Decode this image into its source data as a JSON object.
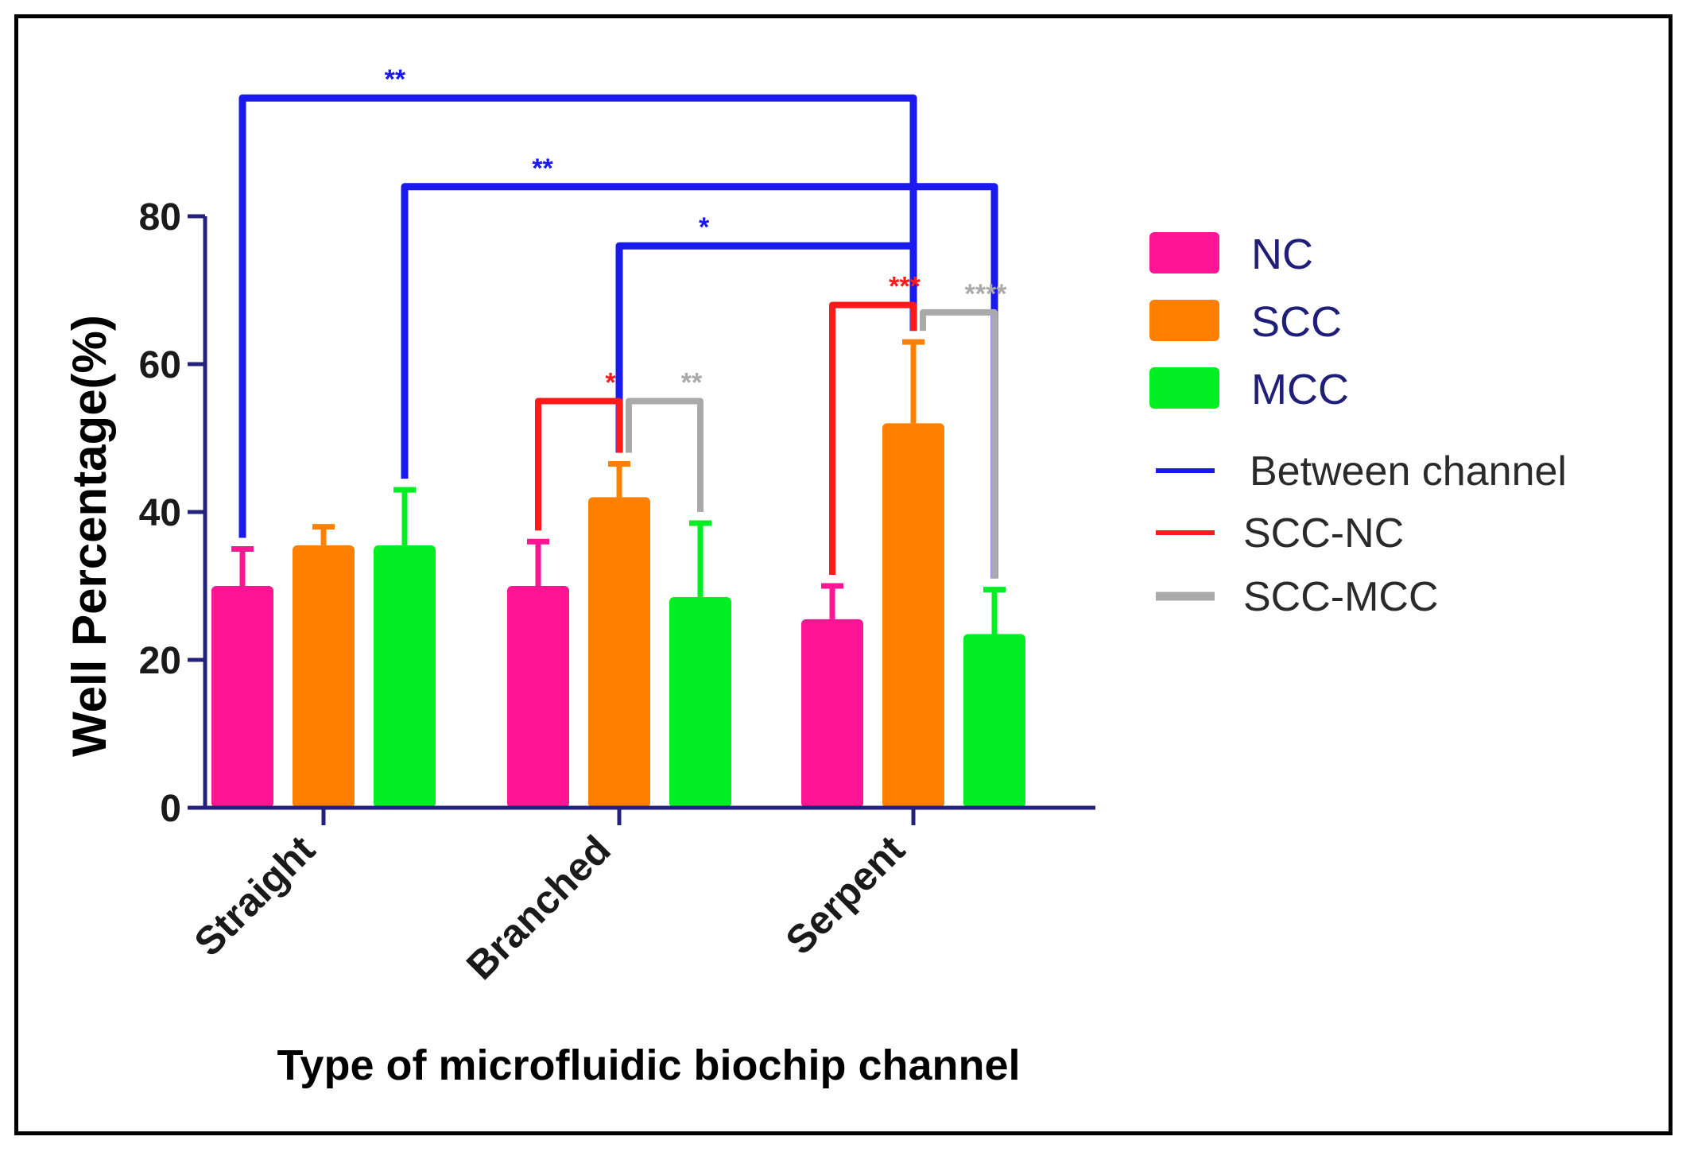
{
  "chart_data": {
    "type": "bar",
    "title": "",
    "xlabel": "Type of microfluidic biochip channel",
    "ylabel": "Well Percentage(%)",
    "ylim": [
      0,
      80
    ],
    "yticks": [
      "0",
      "20",
      "40",
      "60",
      "80"
    ],
    "categories": [
      "Straight",
      "Branched",
      "Serpent"
    ],
    "series": [
      {
        "name": "NC",
        "color": "#ff1493",
        "values": [
          30,
          30,
          25.5
        ],
        "errors": [
          5,
          6,
          4.5
        ]
      },
      {
        "name": "SCC",
        "color": "#ff8000",
        "values": [
          35.5,
          42,
          52
        ],
        "errors": [
          2.5,
          4.5,
          11
        ]
      },
      {
        "name": "MCC",
        "color": "#00ee22",
        "values": [
          35.5,
          28.5,
          23.5
        ],
        "errors": [
          7.5,
          10,
          6
        ]
      }
    ],
    "legend": {
      "position": "right",
      "bars": [
        "NC",
        "SCC",
        "MCC"
      ],
      "lines": [
        {
          "label": "Between channel",
          "color": "#1a1aee"
        },
        {
          "label": "SCC-NC",
          "color": "#ff1a1a"
        },
        {
          "label": "SCC-MCC",
          "color": "#aaaaaa"
        }
      ]
    },
    "significance": [
      {
        "from": "Straight NC",
        "to": "Serpent SCC",
        "level": 96,
        "label": "**",
        "type": "Between channel"
      },
      {
        "from": "Straight MCC",
        "to": "Serpent MCC",
        "level": 84,
        "label": "**",
        "type": "Between channel"
      },
      {
        "from": "Branched SCC",
        "to": "Serpent SCC",
        "level": 76,
        "label": "*",
        "type": "Between channel"
      },
      {
        "from": "Branched NC",
        "to": "Branched SCC",
        "level": 55,
        "label": "*",
        "type": "SCC-NC"
      },
      {
        "from": "Branched SCC",
        "to": "Branched MCC",
        "level": 55,
        "label": "**",
        "type": "SCC-MCC"
      },
      {
        "from": "Serpent NC",
        "to": "Serpent SCC",
        "level": 68,
        "label": "***",
        "type": "SCC-NC"
      },
      {
        "from": "Serpent SCC",
        "to": "Serpent MCC",
        "level": 67,
        "label": "****",
        "type": "SCC-MCC"
      }
    ]
  }
}
